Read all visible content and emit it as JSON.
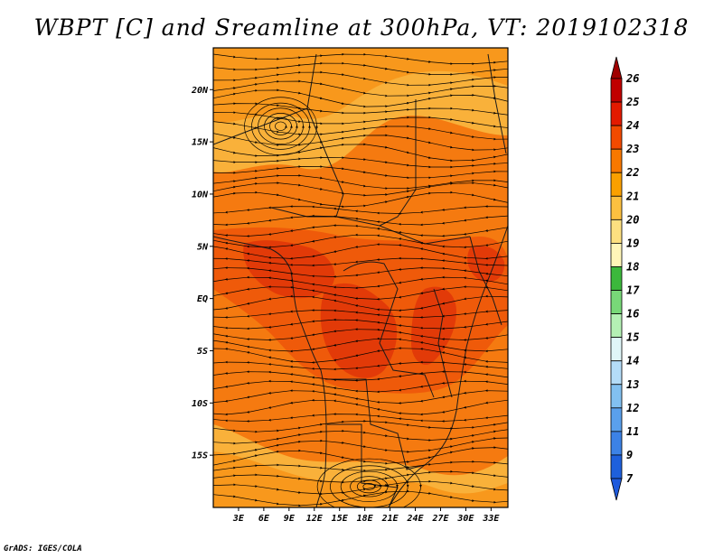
{
  "title": "WBPT [C] and Sreamline at 300hPa, VT: 2019102318",
  "credit": "GrADS: IGES/COLA",
  "map": {
    "lon_range": [
      0,
      35
    ],
    "lat_range": [
      -20,
      24
    ],
    "lat_ticks": [
      {
        "value": 20,
        "label": "20N"
      },
      {
        "value": 15,
        "label": "15N"
      },
      {
        "value": 10,
        "label": "10N"
      },
      {
        "value": 5,
        "label": "5N"
      },
      {
        "value": 0,
        "label": "EQ"
      },
      {
        "value": -5,
        "label": "5S"
      },
      {
        "value": -10,
        "label": "10S"
      },
      {
        "value": -15,
        "label": "15S"
      }
    ],
    "lon_ticks": [
      {
        "value": 3,
        "label": "3E"
      },
      {
        "value": 6,
        "label": "6E"
      },
      {
        "value": 9,
        "label": "9E"
      },
      {
        "value": 12,
        "label": "12E"
      },
      {
        "value": 15,
        "label": "15E"
      },
      {
        "value": 18,
        "label": "18E"
      },
      {
        "value": 21,
        "label": "21E"
      },
      {
        "value": 24,
        "label": "24E"
      },
      {
        "value": 27,
        "label": "27E"
      },
      {
        "value": 30,
        "label": "30E"
      },
      {
        "value": 33,
        "label": "33E"
      }
    ]
  },
  "colorbar": {
    "levels": [
      {
        "label": "26",
        "color": "#a50000"
      },
      {
        "label": "25",
        "color": "#c00000"
      },
      {
        "label": "24",
        "color": "#e31a00"
      },
      {
        "label": "23",
        "color": "#f24a00"
      },
      {
        "label": "22",
        "color": "#f87800"
      },
      {
        "label": "21",
        "color": "#faa000"
      },
      {
        "label": "20",
        "color": "#fcc040"
      },
      {
        "label": "19",
        "color": "#fde080"
      },
      {
        "label": "18",
        "color": "#fff6b8"
      },
      {
        "label": "17",
        "color": "#3cb83c"
      },
      {
        "label": "16",
        "color": "#78d878"
      },
      {
        "label": "15",
        "color": "#b4f0b4"
      },
      {
        "label": "14",
        "color": "#e0f6f8"
      },
      {
        "label": "13",
        "color": "#b4dcf8"
      },
      {
        "label": "12",
        "color": "#82c0f0"
      },
      {
        "label": "11",
        "color": "#5aa0ec"
      },
      {
        "label": "9",
        "color": "#3c82e6"
      },
      {
        "label": "7",
        "color": "#1e60dc"
      }
    ],
    "top_arrow_color": "#a00000",
    "bottom_arrow_color": "#1e5adc"
  },
  "field_colors": {
    "c20": "#f9b13a",
    "c21": "#f8981c",
    "c22": "#f57a10",
    "c23": "#ef5a0a",
    "c24": "#e23a08"
  }
}
